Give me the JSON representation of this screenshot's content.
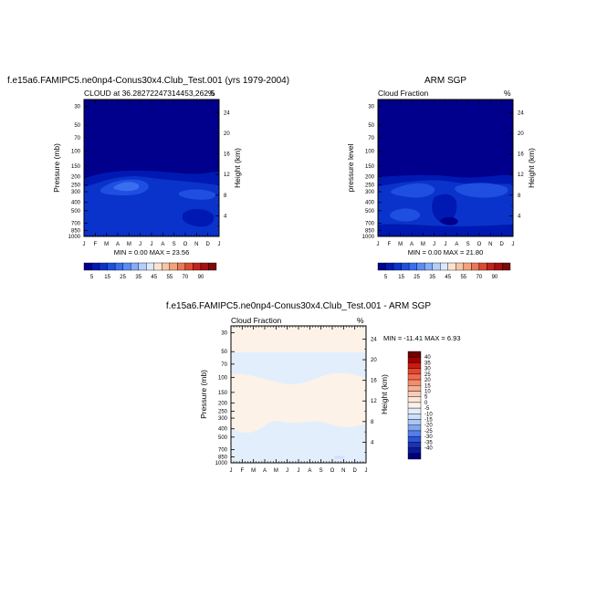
{
  "chart_data": [
    {
      "type": "heatmap",
      "title": "f.e15a6.FAMIPC5.ne0np4-Conus30x4.Club_Test.001 (yrs 1979-2004)",
      "subtitle_left": "CLOUD at 36.28272247314453,262.5",
      "subtitle_right": "%",
      "ylabel": "Pressure (mb)",
      "ylabel_right": "Height (km)",
      "minmax": "MIN =  0.00 MAX =  23.56",
      "xticks": [
        "J",
        "F",
        "M",
        "A",
        "M",
        "J",
        "J",
        "A",
        "S",
        "O",
        "N",
        "D",
        "J"
      ],
      "yticks": [
        "30",
        "50",
        "70",
        "100",
        "150",
        "200",
        "250",
        "300",
        "400",
        "500",
        "700",
        "850",
        "1000"
      ],
      "yticks_right": [
        "24",
        "20",
        "16",
        "12",
        "8",
        "4"
      ],
      "ylim": [
        1000,
        25
      ],
      "colorbar_labels": [
        "5",
        "15",
        "25",
        "35",
        "45",
        "55",
        "70",
        "90"
      ],
      "value_range": [
        0,
        23.56
      ]
    },
    {
      "type": "heatmap",
      "title": "ARM SGP",
      "subtitle_left": "Cloud Fraction",
      "subtitle_right": "%",
      "ylabel": "pressure level",
      "ylabel_right": "Height (km)",
      "minmax": "MIN =  0.00 MAX =  21.80",
      "xticks": [
        "J",
        "F",
        "M",
        "A",
        "M",
        "J",
        "J",
        "A",
        "S",
        "O",
        "N",
        "D",
        "J"
      ],
      "yticks": [
        "30",
        "50",
        "70",
        "100",
        "150",
        "200",
        "250",
        "300",
        "400",
        "500",
        "700",
        "850",
        "1000"
      ],
      "yticks_right": [
        "24",
        "20",
        "16",
        "12",
        "8",
        "4"
      ],
      "ylim": [
        1000,
        25
      ],
      "colorbar_labels": [
        "5",
        "15",
        "25",
        "35",
        "45",
        "55",
        "70",
        "90"
      ],
      "value_range": [
        0,
        21.8
      ]
    },
    {
      "type": "heatmap",
      "title": "f.e15a6.FAMIPC5.ne0np4-Conus30x4.Club_Test.001 - ARM SGP",
      "subtitle_left": "Cloud Fraction",
      "subtitle_right": "%",
      "ylabel": "Pressure (mb)",
      "ylabel_right": "Height (km)",
      "minmax": "MIN = -11.41 MAX =   6.93",
      "xticks": [
        "J",
        "F",
        "M",
        "A",
        "M",
        "J",
        "J",
        "A",
        "S",
        "O",
        "N",
        "D",
        "J"
      ],
      "yticks": [
        "30",
        "50",
        "70",
        "100",
        "150",
        "200",
        "250",
        "300",
        "400",
        "500",
        "700",
        "850",
        "1000"
      ],
      "yticks_right": [
        "24",
        "20",
        "16",
        "12",
        "8",
        "4"
      ],
      "ylim": [
        1000,
        25
      ],
      "colorbar_labels": [
        "40",
        "35",
        "30",
        "25",
        "20",
        "15",
        "10",
        "5",
        "0",
        "-5",
        "-10",
        "-15",
        "-20",
        "-25",
        "-30",
        "-35",
        "-40"
      ],
      "value_range": [
        -11.41,
        6.93
      ]
    }
  ],
  "colors": {
    "seq": [
      "#00008c",
      "#0019b3",
      "#0a33cc",
      "#1f4fe0",
      "#3a6ef0",
      "#5a8cf5",
      "#86adf7",
      "#b4cdf9",
      "#dbe8fb",
      "#fbe3d2",
      "#f7c5a5",
      "#f3a27c",
      "#ea7856",
      "#db4b33",
      "#c4221c",
      "#a50f15",
      "#7d0a0a"
    ],
    "div": [
      "#6b0000",
      "#a10000",
      "#cc1b10",
      "#e8442d",
      "#f26a4f",
      "#f58c6e",
      "#f7ae92",
      "#f9ccb6",
      "#fbe7da",
      "#fdf2e8",
      "#e3eefc",
      "#cfe0fb",
      "#a9c6f7",
      "#7ea6f2",
      "#557eea",
      "#2c55d6",
      "#1a33b8",
      "#0a1a9a",
      "#00007a"
    ],
    "background": "#ffffff"
  }
}
